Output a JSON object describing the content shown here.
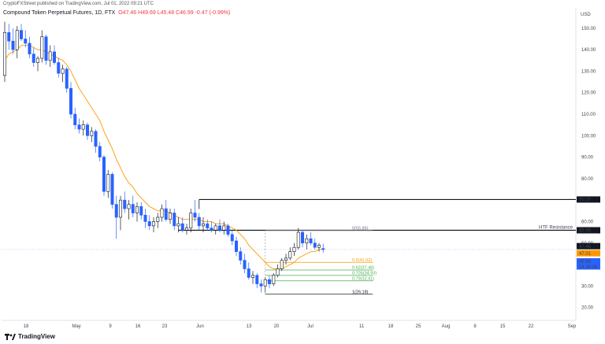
{
  "header": {
    "published": "CryptoFXStreet published on TradingView.com, Jul 01, 2022 09:21 UTC",
    "symbol": "Compound Token Perpetual Futures, 1D, FTX",
    "open": "O47.46",
    "high": "H49.69",
    "low": "L45.48",
    "close": "C46.99",
    "change": "-0.47 (-0.99%)"
  },
  "brand": {
    "name": "TradingView",
    "logo": "tradingview-logo-icon"
  },
  "colors": {
    "up": "#ffffff",
    "down": "#2962ff",
    "ema": "#ff9800",
    "resistance_label": "#f23645",
    "fib_orange": "#ff9800",
    "fib_green": "#4caf50",
    "fib_dark": "#787b86",
    "price_badge": "#2962ff"
  },
  "chart_data": {
    "type": "candlestick",
    "yaxis_title": "USD",
    "yticks": [
      20,
      30,
      40,
      50,
      60,
      70,
      80,
      90,
      100,
      110,
      120,
      130,
      140,
      150
    ],
    "ylim": [
      14,
      158
    ],
    "xticks": [
      "18",
      "May",
      "9",
      "16",
      "23",
      "Jun",
      "13",
      "20",
      "Jul",
      "11",
      "18",
      "25",
      "Aug",
      "8",
      "15",
      "22",
      "Sep"
    ],
    "price_labels": [
      {
        "value": "70.27",
        "style": "black"
      },
      {
        "value": "55.95",
        "style": "black"
      },
      {
        "value": "47.46",
        "style": "black"
      },
      {
        "value": "47.01",
        "style": "orange"
      },
      {
        "value": "46.99",
        "style": "blue"
      },
      {
        "value": "14:38:36",
        "style": "blue"
      }
    ],
    "horizontal_levels": [
      {
        "name": "resistance-70",
        "value": 70.27
      },
      {
        "name": "htf-resistance",
        "value": 55.95,
        "label": "HTF Resistance"
      }
    ],
    "fib_levels": [
      {
        "ratio_label": "0(55.86)",
        "value": 55.86,
        "color": "#787b86"
      },
      {
        "ratio_label": "0.5(41.02)",
        "value": 41.02,
        "color": "#ff9800"
      },
      {
        "ratio_label": "0.62(37.46)",
        "value": 37.46,
        "color": "#4caf50"
      },
      {
        "ratio_label": "0.705(34.93)",
        "value": 34.93,
        "color": "#4caf50"
      },
      {
        "ratio_label": "0.79(32.41)",
        "value": 32.41,
        "color": "#4caf50"
      },
      {
        "ratio_label": "1(26.18)",
        "value": 26.18,
        "color": "#131722"
      }
    ],
    "candles": [
      [
        128,
        153,
        125,
        148
      ],
      [
        148,
        152,
        140,
        144
      ],
      [
        144,
        150,
        138,
        140
      ],
      [
        140,
        151,
        136,
        149
      ],
      [
        149,
        152,
        144,
        145
      ],
      [
        145,
        149,
        141,
        143
      ],
      [
        143,
        146,
        136,
        138
      ],
      [
        138,
        141,
        132,
        134
      ],
      [
        134,
        137,
        130,
        136
      ],
      [
        136,
        149,
        134,
        146
      ],
      [
        146,
        147,
        133,
        135
      ],
      [
        135,
        142,
        132,
        139
      ],
      [
        139,
        142,
        133,
        134
      ],
      [
        134,
        136,
        127,
        129
      ],
      [
        129,
        133,
        125,
        131
      ],
      [
        131,
        132,
        120,
        122
      ],
      [
        122,
        125,
        108,
        110
      ],
      [
        110,
        113,
        103,
        105
      ],
      [
        105,
        108,
        101,
        103
      ],
      [
        103,
        107,
        100,
        105
      ],
      [
        105,
        106,
        98,
        100
      ],
      [
        100,
        104,
        97,
        102
      ],
      [
        102,
        103,
        92,
        95
      ],
      [
        95,
        97,
        88,
        90
      ],
      [
        90,
        91,
        72,
        74
      ],
      [
        74,
        84,
        71,
        82
      ],
      [
        82,
        83,
        66,
        68
      ],
      [
        68,
        72,
        52,
        62
      ],
      [
        62,
        72,
        56,
        70
      ],
      [
        70,
        74,
        64,
        66
      ],
      [
        66,
        70,
        61,
        68
      ],
      [
        68,
        72,
        62,
        64
      ],
      [
        64,
        69,
        60,
        67
      ],
      [
        67,
        69,
        61,
        63
      ],
      [
        63,
        66,
        57,
        60
      ],
      [
        60,
        63,
        56,
        58
      ],
      [
        58,
        62,
        55,
        60
      ],
      [
        60,
        64,
        57,
        62
      ],
      [
        62,
        68,
        60,
        66
      ],
      [
        66,
        70,
        60,
        61
      ],
      [
        61,
        66,
        59,
        64
      ],
      [
        64,
        66,
        56,
        58
      ],
      [
        58,
        62,
        55,
        59
      ],
      [
        59,
        62,
        55,
        56
      ],
      [
        56,
        59,
        54,
        57
      ],
      [
        57,
        66,
        55,
        64
      ],
      [
        64,
        70,
        60,
        62
      ],
      [
        62,
        64,
        56,
        58
      ],
      [
        58,
        62,
        55,
        59
      ],
      [
        59,
        61,
        56,
        57
      ],
      [
        57,
        60,
        55,
        56
      ],
      [
        56,
        59,
        54,
        58
      ],
      [
        58,
        61,
        55,
        56
      ],
      [
        56,
        60,
        54,
        58
      ],
      [
        58,
        59,
        53,
        54
      ],
      [
        54,
        56,
        49,
        51
      ],
      [
        51,
        53,
        44,
        46
      ],
      [
        46,
        48,
        40,
        42
      ],
      [
        42,
        45,
        36,
        38
      ],
      [
        38,
        41,
        33,
        34
      ],
      [
        34,
        37,
        31,
        35
      ],
      [
        35,
        36,
        29,
        31
      ],
      [
        31,
        33,
        27,
        30
      ],
      [
        30,
        34,
        27,
        33
      ],
      [
        33,
        35,
        29,
        31
      ],
      [
        31,
        36,
        30,
        35
      ],
      [
        35,
        40,
        34,
        38
      ],
      [
        38,
        43,
        37,
        42
      ],
      [
        42,
        45,
        40,
        43
      ],
      [
        43,
        48,
        42,
        46
      ],
      [
        46,
        50,
        44,
        48
      ],
      [
        48,
        57,
        47,
        55
      ],
      [
        55,
        56,
        48,
        50
      ],
      [
        50,
        54,
        47,
        52
      ],
      [
        52,
        55,
        49,
        50
      ],
      [
        50,
        52,
        47,
        48
      ],
      [
        48,
        50,
        46,
        49
      ],
      [
        47.46,
        49.69,
        45.48,
        46.99
      ]
    ],
    "ema": [
      135,
      138,
      139,
      140,
      142,
      142,
      142,
      141,
      140,
      140,
      139,
      138,
      137,
      136,
      135,
      133,
      130,
      126,
      122,
      119,
      116,
      113,
      110,
      107,
      102,
      98,
      94,
      89,
      85,
      81,
      78,
      76,
      73,
      71,
      69,
      67,
      66,
      65,
      65,
      65,
      64,
      63,
      62,
      61,
      61,
      61,
      61,
      61,
      60,
      60,
      60,
      59,
      59,
      59,
      58,
      57,
      56,
      54,
      52,
      49,
      47,
      45,
      43,
      41,
      39,
      38,
      38,
      38,
      39,
      40,
      41,
      43,
      44,
      45,
      46,
      46,
      47,
      47
    ]
  }
}
